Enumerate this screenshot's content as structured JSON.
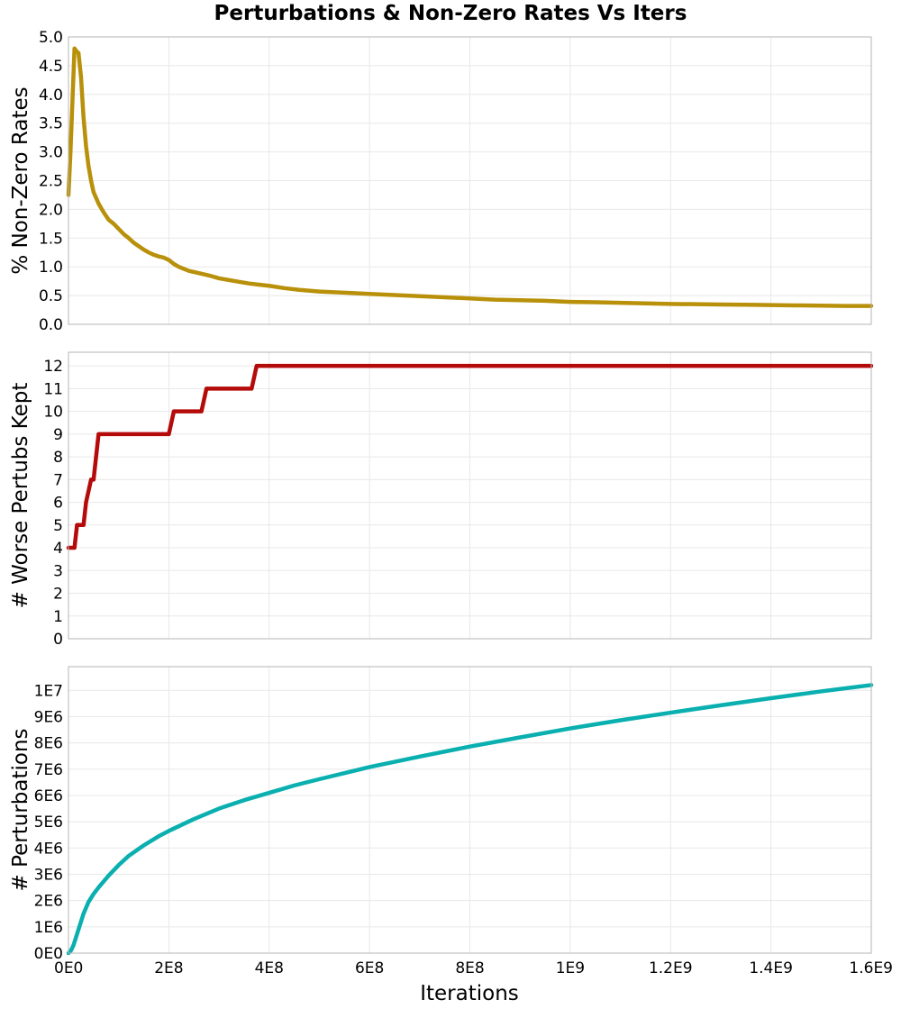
{
  "figure": {
    "title": "Perturbations & Non-Zero Rates Vs Iters",
    "xlabel": "Iterations"
  },
  "chart_data": [
    {
      "type": "line",
      "title": "",
      "xlabel": "Iterations",
      "ylabel": "% Non-Zero Rates",
      "xlim": [
        0,
        1600000000
      ],
      "ylim": [
        0,
        5
      ],
      "xticks": [
        0,
        200000000,
        400000000,
        600000000,
        800000000,
        1000000000,
        1200000000,
        1400000000,
        1600000000
      ],
      "xtick_labels": [
        "0E0",
        "2E8",
        "4E8",
        "6E8",
        "8E8",
        "1E9",
        "1.2E9",
        "1.4E9",
        "1.6E9"
      ],
      "yticks": [
        0,
        0.5,
        1,
        1.5,
        2,
        2.5,
        3,
        3.5,
        4,
        4.5,
        5
      ],
      "ytick_labels": [
        "0.0",
        "0.5",
        "1.0",
        "1.5",
        "2.0",
        "2.5",
        "3.0",
        "3.5",
        "4.0",
        "4.5",
        "5.0"
      ],
      "grid": true,
      "legend": "none",
      "series": [
        {
          "color": "#b8900a",
          "x": [
            0,
            4000000,
            8000000,
            12000000,
            16000000,
            20000000,
            25000000,
            30000000,
            35000000,
            40000000,
            45000000,
            50000000,
            55000000,
            60000000,
            70000000,
            80000000,
            90000000,
            100000000,
            110000000,
            120000000,
            130000000,
            140000000,
            150000000,
            160000000,
            170000000,
            180000000,
            190000000,
            200000000,
            210000000,
            220000000,
            240000000,
            260000000,
            280000000,
            300000000,
            320000000,
            340000000,
            360000000,
            380000000,
            400000000,
            430000000,
            460000000,
            500000000,
            550000000,
            600000000,
            650000000,
            700000000,
            750000000,
            800000000,
            850000000,
            900000000,
            950000000,
            1000000000,
            1050000000,
            1100000000,
            1150000000,
            1200000000,
            1250000000,
            1300000000,
            1350000000,
            1400000000,
            1450000000,
            1500000000,
            1550000000,
            1600000000
          ],
          "y": [
            2.25,
            3.0,
            3.9,
            4.8,
            4.75,
            4.72,
            4.3,
            3.6,
            3.1,
            2.75,
            2.5,
            2.3,
            2.2,
            2.1,
            1.95,
            1.82,
            1.75,
            1.66,
            1.57,
            1.5,
            1.42,
            1.36,
            1.3,
            1.25,
            1.21,
            1.18,
            1.16,
            1.12,
            1.05,
            1.0,
            0.93,
            0.89,
            0.85,
            0.8,
            0.77,
            0.74,
            0.71,
            0.69,
            0.67,
            0.63,
            0.6,
            0.57,
            0.55,
            0.53,
            0.51,
            0.49,
            0.47,
            0.45,
            0.43,
            0.42,
            0.41,
            0.39,
            0.385,
            0.375,
            0.365,
            0.355,
            0.35,
            0.345,
            0.34,
            0.335,
            0.33,
            0.325,
            0.32,
            0.32
          ]
        }
      ]
    },
    {
      "type": "line",
      "title": "",
      "xlabel": "Iterations",
      "ylabel": "# Worse Pertubs Kept",
      "xlim": [
        0,
        1600000000
      ],
      "ylim": [
        0,
        12.6
      ],
      "xticks": [
        0,
        200000000,
        400000000,
        600000000,
        800000000,
        1000000000,
        1200000000,
        1400000000,
        1600000000
      ],
      "xtick_labels": [
        "0E0",
        "2E8",
        "4E8",
        "6E8",
        "8E8",
        "1E9",
        "1.2E9",
        "1.4E9",
        "1.6E9"
      ],
      "yticks": [
        0,
        1,
        2,
        3,
        4,
        5,
        6,
        7,
        8,
        9,
        10,
        11,
        12
      ],
      "ytick_labels": [
        "0",
        "1",
        "2",
        "3",
        "4",
        "5",
        "6",
        "7",
        "8",
        "9",
        "10",
        "11",
        "12"
      ],
      "grid": true,
      "legend": "none",
      "series": [
        {
          "color": "#b50a0a",
          "x": [
            0,
            12000000,
            17000000,
            30000000,
            35000000,
            45000000,
            50000000,
            55000000,
            60000000,
            200000000,
            210000000,
            265000000,
            275000000,
            365000000,
            375000000,
            1600000000
          ],
          "y": [
            4,
            4,
            5,
            5,
            6,
            7,
            7,
            8,
            9,
            9,
            10,
            10,
            11,
            11,
            12,
            12
          ]
        }
      ]
    },
    {
      "type": "line",
      "title": "",
      "xlabel": "Iterations",
      "ylabel": "# Perturbations",
      "xlim": [
        0,
        1600000000
      ],
      "ylim": [
        0,
        10900000
      ],
      "xticks": [
        0,
        200000000,
        400000000,
        600000000,
        800000000,
        1000000000,
        1200000000,
        1400000000,
        1600000000
      ],
      "xtick_labels": [
        "0E0",
        "2E8",
        "4E8",
        "6E8",
        "8E8",
        "1E9",
        "1.2E9",
        "1.4E9",
        "1.6E9"
      ],
      "yticks": [
        0,
        1000000,
        2000000,
        3000000,
        4000000,
        5000000,
        6000000,
        7000000,
        8000000,
        9000000,
        10000000
      ],
      "ytick_labels": [
        "0E0",
        "1E6",
        "2E6",
        "3E6",
        "4E6",
        "5E6",
        "6E6",
        "7E6",
        "8E6",
        "9E6",
        "1E7"
      ],
      "grid": true,
      "legend": "none",
      "series": [
        {
          "color": "#0aafaf",
          "x": [
            0,
            5000000,
            10000000,
            20000000,
            30000000,
            40000000,
            50000000,
            60000000,
            80000000,
            100000000,
            120000000,
            150000000,
            180000000,
            200000000,
            250000000,
            300000000,
            350000000,
            400000000,
            450000000,
            500000000,
            550000000,
            600000000,
            700000000,
            800000000,
            900000000,
            1000000000,
            1100000000,
            1200000000,
            1300000000,
            1400000000,
            1500000000,
            1600000000
          ],
          "y": [
            0,
            100000,
            300000,
            900000,
            1500000,
            1950000,
            2250000,
            2500000,
            2950000,
            3350000,
            3700000,
            4100000,
            4450000,
            4650000,
            5100000,
            5500000,
            5820000,
            6100000,
            6380000,
            6620000,
            6850000,
            7080000,
            7480000,
            7860000,
            8210000,
            8550000,
            8860000,
            9150000,
            9430000,
            9700000,
            9960000,
            10200000
          ]
        }
      ]
    }
  ]
}
